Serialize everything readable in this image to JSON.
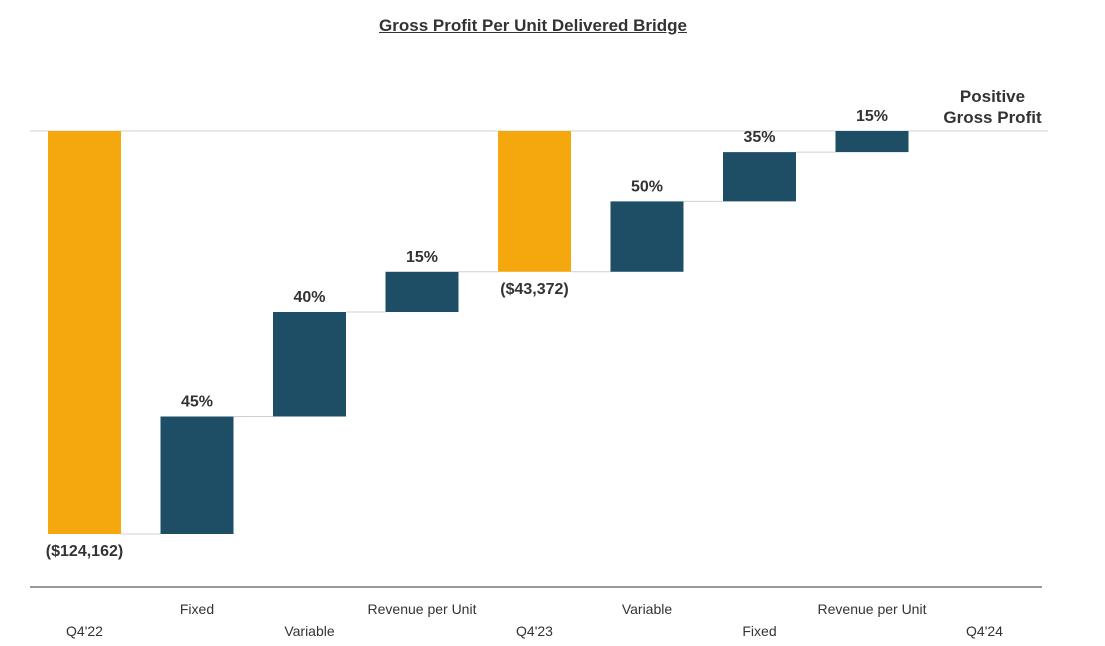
{
  "chart_data": {
    "type": "bar",
    "subtype": "waterfall",
    "title": "Gross Profit Per Unit Delivered Bridge",
    "xlabel": "",
    "ylabel": "",
    "units": "USD",
    "ylim": [
      -124162,
      0
    ],
    "grid": false,
    "legend": "none",
    "categories": [
      "Q4'22",
      "Fixed",
      "Variable",
      "Revenue per Unit",
      "Q4'23",
      "Variable",
      "Fixed",
      "Revenue per Unit",
      "Q4'24"
    ],
    "bars": [
      {
        "category": "Q4'22",
        "kind": "total",
        "start": -124162,
        "end": 0,
        "label": "($124,162)"
      },
      {
        "category": "Fixed",
        "kind": "change",
        "start": -124162,
        "end": -87962,
        "label": "45%"
      },
      {
        "category": "Variable",
        "kind": "change",
        "start": -87962,
        "end": -55762,
        "label": "40%"
      },
      {
        "category": "Revenue per Unit",
        "kind": "change",
        "start": -55762,
        "end": -43372,
        "label": "15%"
      },
      {
        "category": "Q4'23",
        "kind": "total",
        "start": -43372,
        "end": 0,
        "label": "($43,372)"
      },
      {
        "category": "Variable",
        "kind": "change",
        "start": -43372,
        "end": -21686,
        "label": "50%"
      },
      {
        "category": "Fixed",
        "kind": "change",
        "start": -21686,
        "end": -6506,
        "label": "35%"
      },
      {
        "category": "Revenue per Unit",
        "kind": "change",
        "start": -6506,
        "end": 0,
        "label": "15%"
      },
      {
        "category": "Q4'24",
        "kind": "total",
        "start": 0,
        "end": 0,
        "label": ""
      }
    ],
    "annotations": [
      {
        "text_lines": [
          "Positive",
          "Gross Profit"
        ],
        "anchor_category": "Q4'24"
      }
    ],
    "colors": {
      "total": "#F5A70E",
      "change": "#1E4D66",
      "label": "#333333",
      "axis": "#333333",
      "connector": "#D0D0D0"
    }
  }
}
